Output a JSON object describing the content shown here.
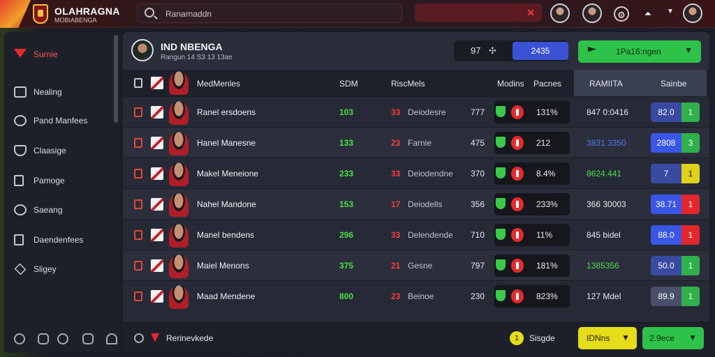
{
  "app": {
    "title": "OLAHRAGNA",
    "subtitle": "MOBIABENGA"
  },
  "search": {
    "placeholder": "Ranarnaddn"
  },
  "sidebar": {
    "items": [
      {
        "label": "Surnie",
        "icon": "heart-shield-icon",
        "active": true
      },
      {
        "label": "Nealing",
        "icon": "inbox-icon"
      },
      {
        "label": "Pand Manfees",
        "icon": "globe-icon"
      },
      {
        "label": "Claasige",
        "icon": "shield-icon"
      },
      {
        "label": "Pamoge",
        "icon": "document-icon"
      },
      {
        "label": "Saeang",
        "icon": "chat-icon"
      },
      {
        "label": "Daendenfees",
        "icon": "clipboard-icon"
      },
      {
        "label": "Sligey",
        "icon": "layers-icon"
      }
    ]
  },
  "header": {
    "title": "IND NBENGA",
    "meta": "Rangun 14 S3 13 13ae",
    "score": "97",
    "score_chip": "2435",
    "cta": "1Pa16:ngen"
  },
  "columns": {
    "player": "MedMenles",
    "s1": "SDM",
    "s2": "RiscMels",
    "form": "Modins",
    "form_pct": "Pacnes",
    "value": "RAMIITA",
    "rating": "Sainbe"
  },
  "rows": [
    {
      "name": "Ranel ersdoens",
      "a": "103",
      "b": "33",
      "btext": "Deiodesre",
      "c": "777",
      "pct": "131%",
      "value": "847 0:0416",
      "value_color": "white",
      "rating": "82.0",
      "badge": "1",
      "badge_color": "green",
      "rating_style": "normal"
    },
    {
      "name": "Hanel Manesne",
      "a": "133",
      "b": "23",
      "btext": "Farnie",
      "c": "475",
      "pct": "212",
      "value": "3831 3350",
      "value_color": "blue",
      "rating": "2808",
      "badge": "3",
      "badge_color": "green",
      "rating_style": "bright"
    },
    {
      "name": "Makel Meneione",
      "a": "233",
      "b": "33",
      "btext": "Deiodendne",
      "c": "370",
      "pct": "8.4%",
      "value": "8624.441",
      "value_color": "green",
      "rating": "7",
      "badge": "1",
      "badge_color": "yellow",
      "rating_style": "normal"
    },
    {
      "name": "Nahel Mandone",
      "a": "153",
      "b": "17",
      "btext": "Deiodells",
      "c": "356",
      "pct": "233%",
      "value": "366 30003",
      "value_color": "white",
      "rating": "38.71",
      "badge": "1",
      "badge_color": "red",
      "rating_style": "bright"
    },
    {
      "name": "Manel bendens",
      "a": "296",
      "b": "33",
      "btext": "Delendende",
      "c": "710",
      "pct": "11%",
      "value": "845 bidel",
      "value_color": "white",
      "rating": "88.0",
      "badge": "1",
      "badge_color": "red",
      "rating_style": "bright"
    },
    {
      "name": "Maiel Menons",
      "a": "375",
      "b": "21",
      "btext": "Gesne",
      "c": "797",
      "pct": "181%",
      "value": "1385356",
      "value_color": "green",
      "rating": "50.0",
      "badge": "1",
      "badge_color": "green",
      "rating_style": "normal"
    },
    {
      "name": "Maad Mendene",
      "a": "800",
      "b": "23",
      "btext": "Beinoe",
      "c": "230",
      "pct": "823%",
      "value": "127 Mdel",
      "value_color": "white",
      "rating": "89.9",
      "badge": "1",
      "badge_color": "green",
      "rating_style": "gray"
    }
  ],
  "footer": {
    "label": "Rerinevkede",
    "stat_badge": "1",
    "stat": "Sisgde",
    "btn_yellow": "IDNns",
    "btn_green": "2.9ece"
  },
  "colors": {
    "accent_green": "#2ec24a",
    "accent_blue": "#3a52d6",
    "accent_red": "#e2272e",
    "accent_yellow": "#e6dc1a"
  }
}
